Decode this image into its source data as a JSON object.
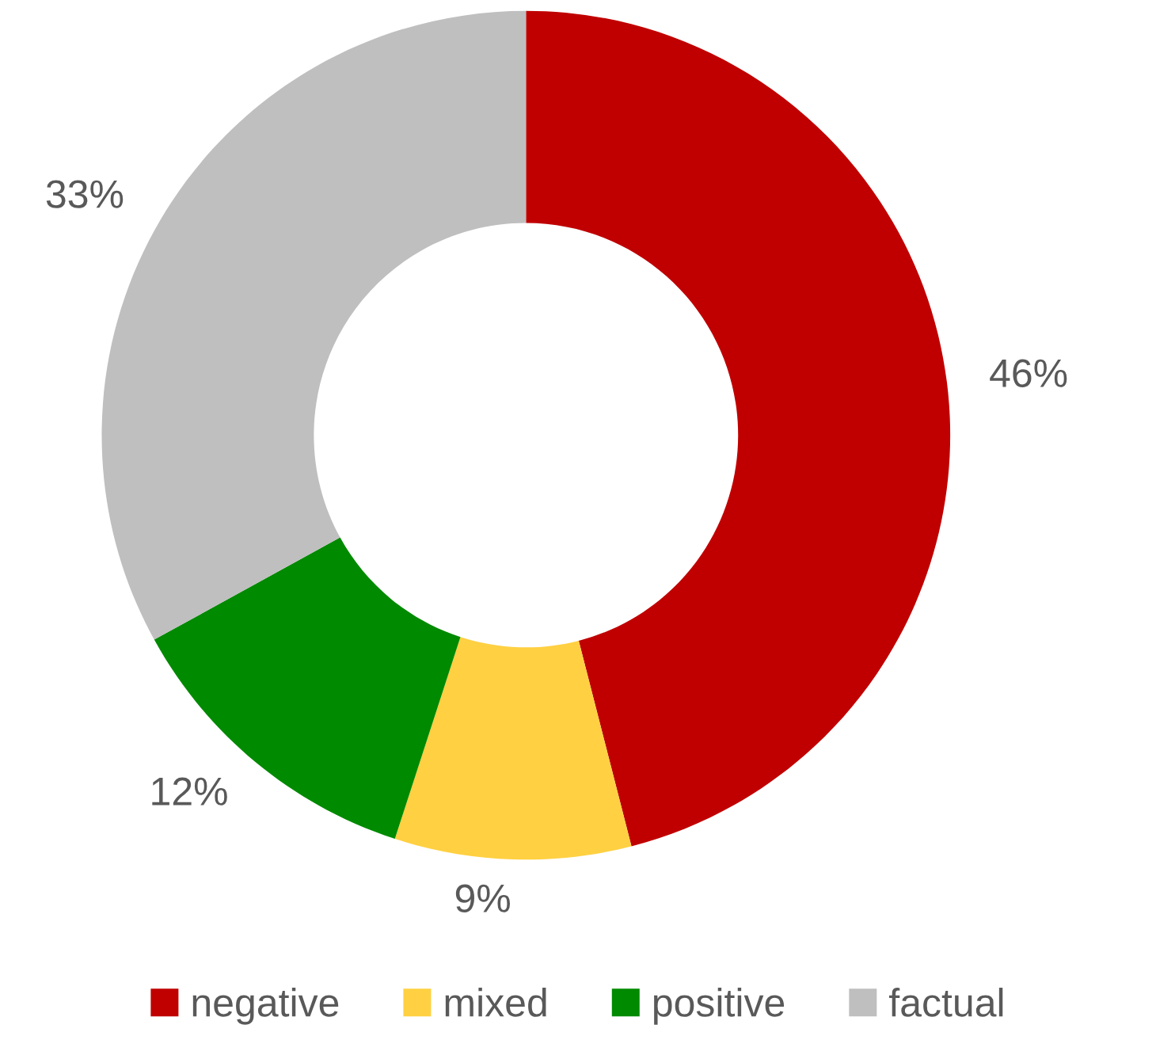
{
  "chart_data": {
    "type": "donut",
    "categories": [
      "negative",
      "mixed",
      "positive",
      "factual"
    ],
    "values": [
      46,
      9,
      12,
      33
    ],
    "colors": [
      "#c00000",
      "#ffd041",
      "#008a00",
      "#bfbfbf"
    ],
    "value_labels": [
      "46%",
      "9%",
      "12%",
      "33%"
    ],
    "legend": "bottom"
  }
}
